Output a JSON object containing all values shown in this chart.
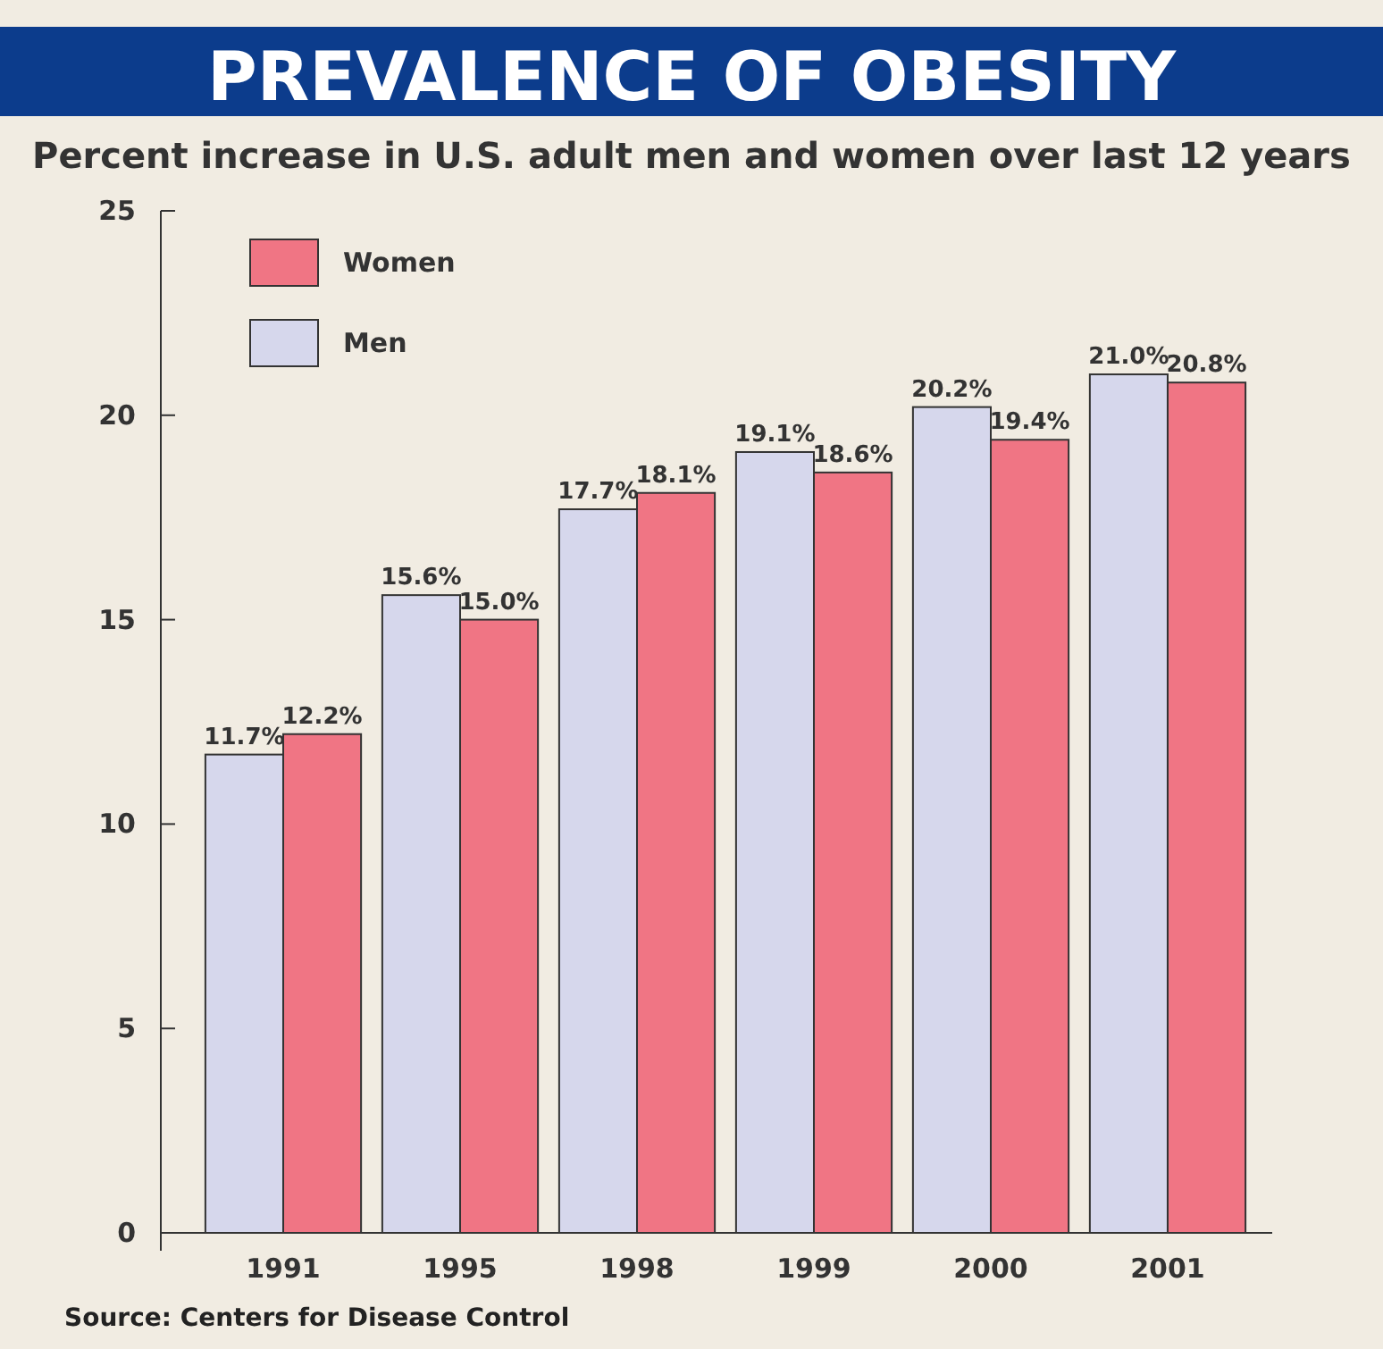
{
  "chart_data": {
    "type": "bar",
    "title": "PREVALENCE OF OBESITY",
    "subtitle": "Percent increase in U.S. adult men and women over last 12 years",
    "categories": [
      "1991",
      "1995",
      "1998",
      "1999",
      "2000",
      "2001"
    ],
    "series": [
      {
        "name": "Men",
        "color": "#d6d7ec",
        "values": [
          11.7,
          15.6,
          17.7,
          19.1,
          20.2,
          21.0
        ],
        "value_labels": [
          "11.7%",
          "15.6%",
          "17.7%",
          "19.1%",
          "20.2%",
          "21.0%"
        ]
      },
      {
        "name": "Women",
        "color": "#f07584",
        "values": [
          12.2,
          15.0,
          18.1,
          18.6,
          19.4,
          20.8
        ],
        "value_labels": [
          "12.2%",
          "15.0%",
          "18.1%",
          "18.6%",
          "19.4%",
          "20.8%"
        ]
      }
    ],
    "ylim": [
      0,
      25
    ],
    "yticks": [
      0,
      5,
      10,
      15,
      20,
      25
    ],
    "grid": false,
    "legend": "top left",
    "annotations": [
      "Source: Centers for Disease Control"
    ]
  }
}
